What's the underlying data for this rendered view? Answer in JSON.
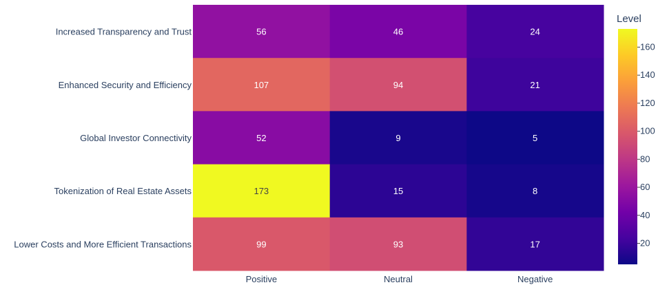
{
  "chart_data": {
    "type": "heatmap",
    "x_categories": [
      "Positive",
      "Neutral",
      "Negative"
    ],
    "y_categories": [
      "Increased Transparency and Trust",
      "Enhanced Security and Efficiency",
      "Global Investor Connectivity",
      "Tokenization of Real Estate Assets",
      "Lower Costs and More Efficient Transactions"
    ],
    "values": [
      [
        56,
        46,
        24
      ],
      [
        107,
        94,
        21
      ],
      [
        52,
        9,
        5
      ],
      [
        173,
        15,
        8
      ],
      [
        99,
        93,
        17
      ]
    ],
    "colorbar": {
      "title": "Level",
      "range": [
        5,
        173
      ],
      "ticks": [
        20,
        40,
        60,
        80,
        100,
        120,
        140,
        160
      ]
    },
    "colorscale": [
      "#0d0887",
      "#46039f",
      "#7201a8",
      "#9c179e",
      "#bd3786",
      "#d8576b",
      "#ed7953",
      "#fb9f3a",
      "#fdca26",
      "#f0f921"
    ],
    "label_colors": {
      "light": "#ffffff",
      "dark": "#444444"
    },
    "title": "",
    "xlabel": "",
    "ylabel": ""
  }
}
